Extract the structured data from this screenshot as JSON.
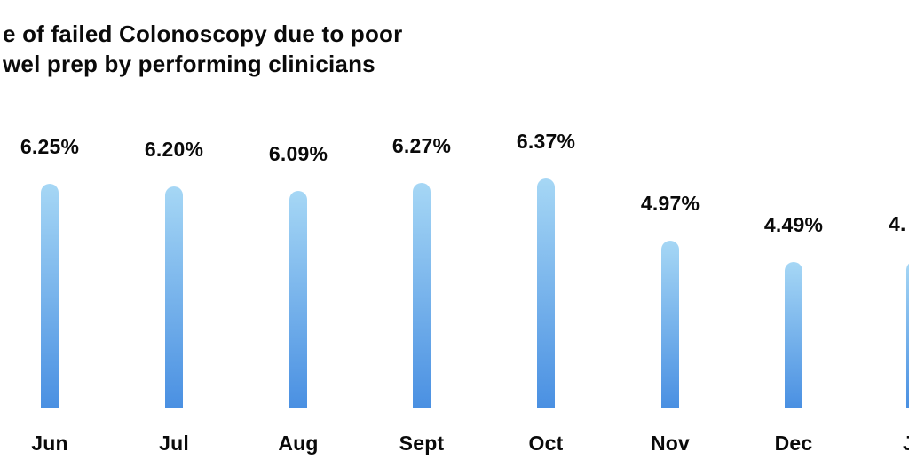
{
  "title": {
    "line1": "e of failed Colonoscopy due to poor",
    "line2": "wel prep by performing clinicians"
  },
  "chart_data": {
    "type": "bar",
    "title_lines": [
      "e of failed Colonoscopy due to poor",
      "wel prep by performing clinicians"
    ],
    "categories": [
      "Jun",
      "Jul",
      "Aug",
      "Sept",
      "Oct",
      "Nov",
      "Dec",
      "J"
    ],
    "values": [
      6.25,
      6.2,
      6.09,
      6.27,
      6.37,
      4.97,
      4.49,
      null
    ],
    "value_labels": [
      "6.25%",
      "6.20%",
      "6.09%",
      "6.27%",
      "6.37%",
      "4.97%",
      "4.49%",
      "4."
    ],
    "unit": "%",
    "xlabel": "",
    "ylabel": "",
    "axes_visible": false,
    "gridlines": false,
    "legend": false,
    "title_clipped_left": true,
    "last_column_clipped_right": true,
    "colors": {
      "bar_gradient_top": "#a6d7f5",
      "bar_gradient_bottom": "#4a90e2",
      "text": "#0a0a0a",
      "background": "#ffffff"
    }
  }
}
